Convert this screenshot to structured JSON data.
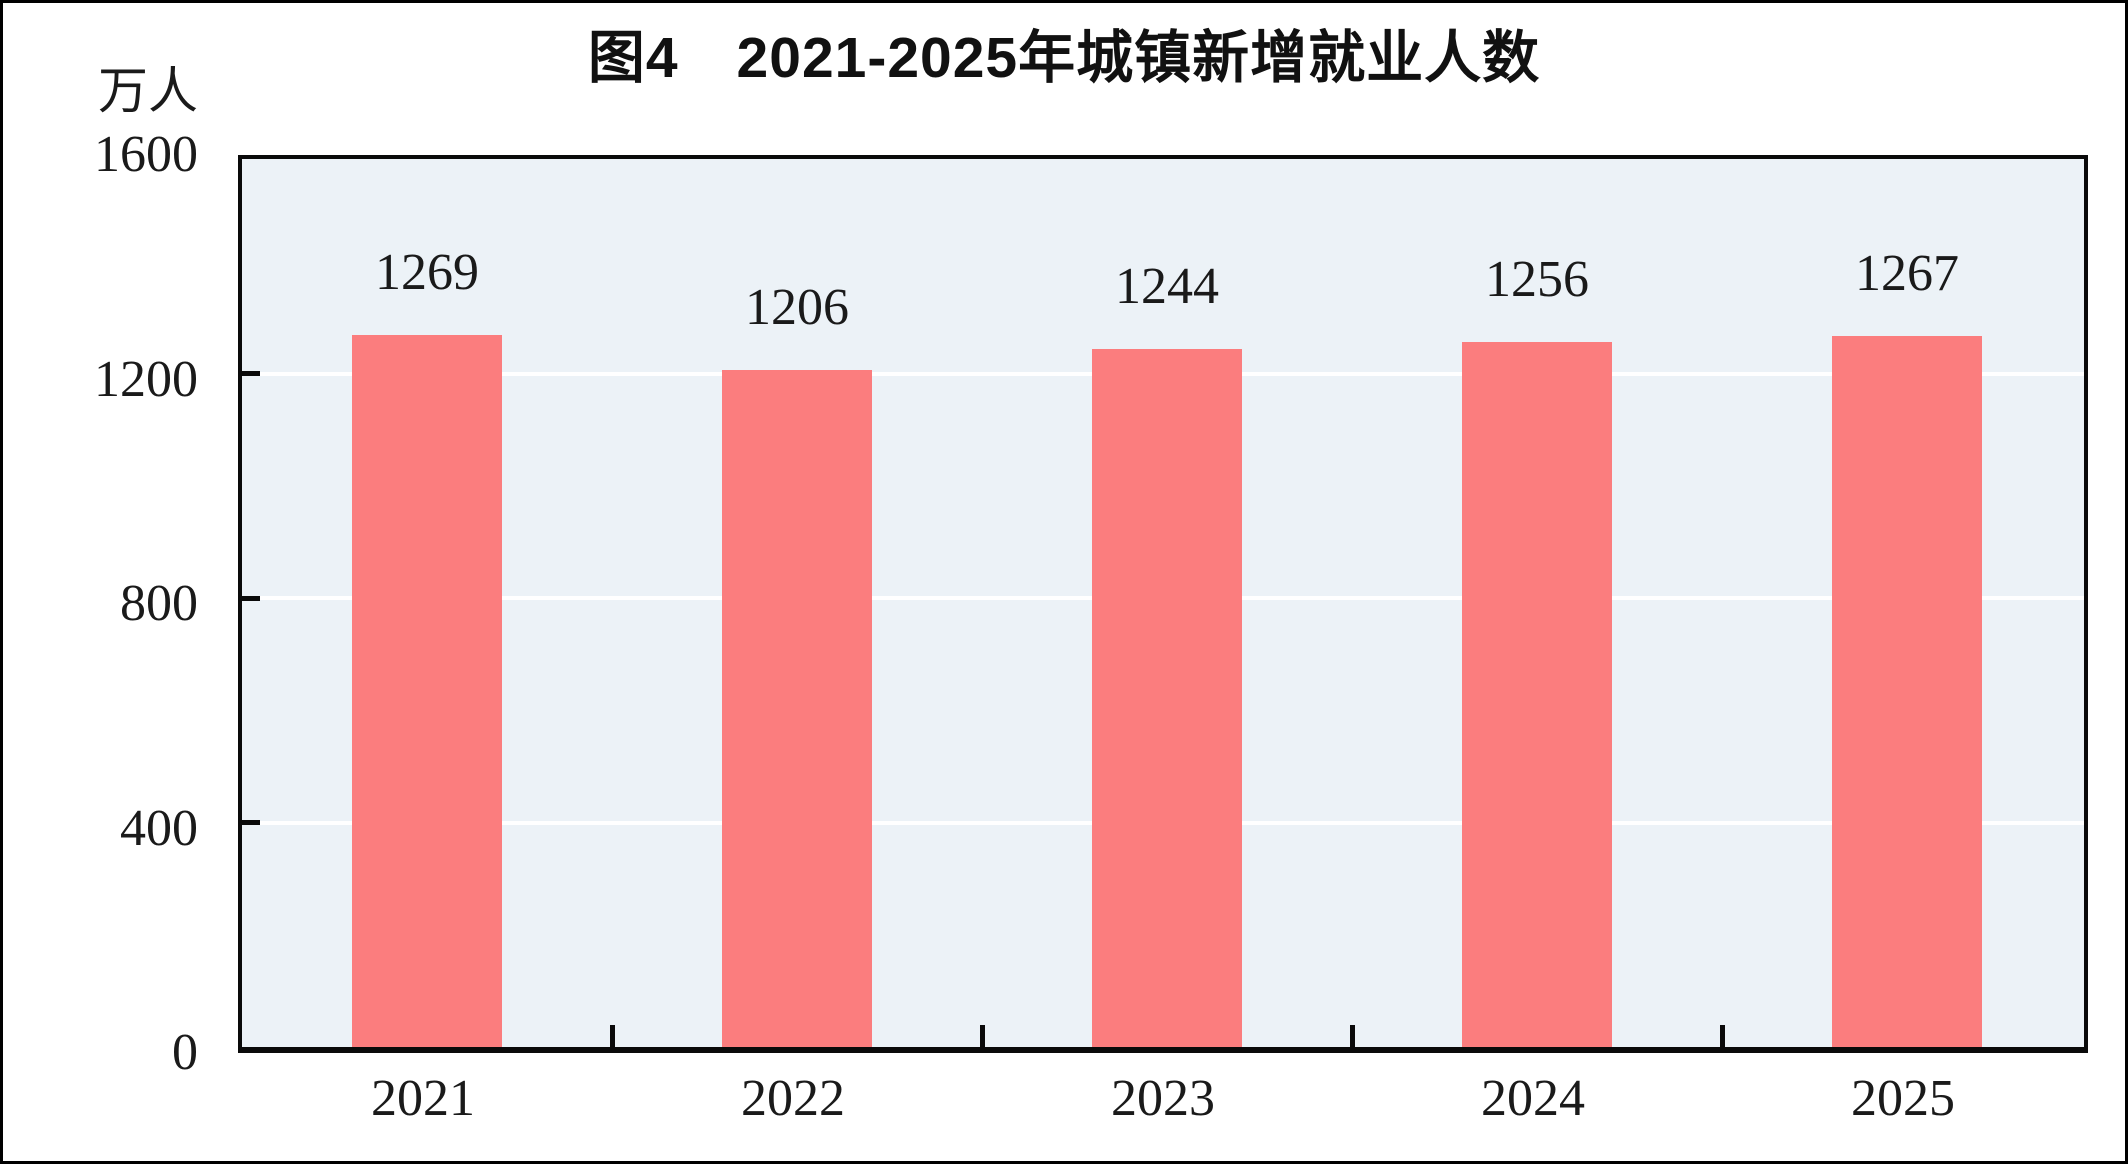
{
  "page": {
    "background_color": "#FFFFFF",
    "outer_border_color": "#000000"
  },
  "chart_data": {
    "type": "bar",
    "title": "图4　2021-2025年城镇新增就业人数",
    "unit_label": "万人",
    "categories": [
      "2021",
      "2022",
      "2023",
      "2024",
      "2025"
    ],
    "values": [
      1269,
      1206,
      1244,
      1256,
      1267
    ],
    "value_labels": [
      "1269",
      "1206",
      "1244",
      "1256",
      "1267"
    ],
    "ytick_labels": [
      "0",
      "400",
      "800",
      "1200",
      "1600"
    ],
    "yticks": [
      0,
      400,
      800,
      1200,
      1600
    ],
    "ylim": [
      0,
      1600
    ],
    "xlabel": "",
    "ylabel": "万人",
    "legend_position": "none",
    "grid": "horizontal white gridlines at 400, 800, 1200",
    "bar_color": "#FB7D7E",
    "plot_background": "#ECF2F7",
    "gridline_color": "#FFFFFF",
    "axis_color": "#0A0A0A",
    "text_color": "#1A1A1A"
  }
}
